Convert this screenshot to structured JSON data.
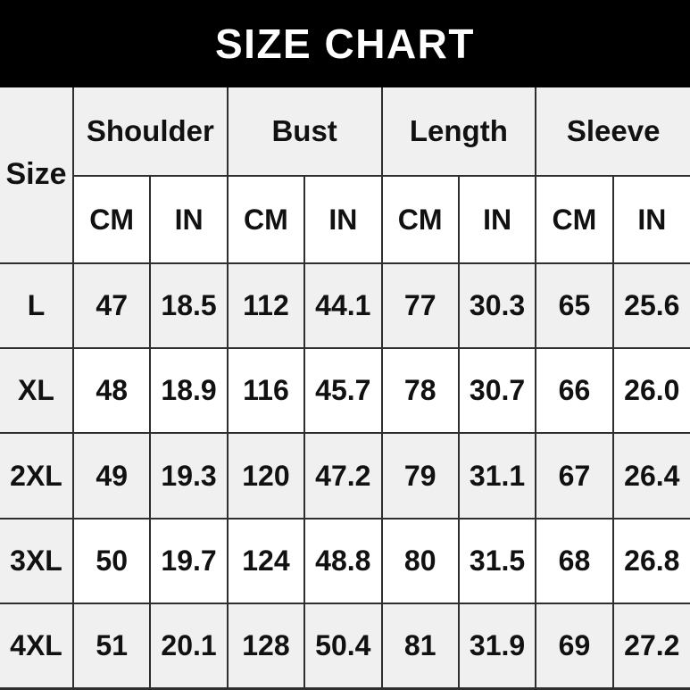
{
  "banner": {
    "title": "SIZE CHART"
  },
  "colors": {
    "banner_bg": "#000000",
    "banner_text": "#ffffff",
    "shaded_cell": "#f0f0f0",
    "plain_cell": "#ffffff",
    "border": "#2e2e2e",
    "text": "#111111"
  },
  "table": {
    "size_header": "Size",
    "groups": [
      {
        "label": "Shoulder"
      },
      {
        "label": "Bust"
      },
      {
        "label": "Length"
      },
      {
        "label": "Sleeve"
      }
    ],
    "units": [
      "CM",
      "IN",
      "CM",
      "IN",
      "CM",
      "IN",
      "CM",
      "IN"
    ],
    "rows": [
      {
        "size": "L",
        "values": [
          "47",
          "18.5",
          "112",
          "44.1",
          "77",
          "30.3",
          "65",
          "25.6"
        ]
      },
      {
        "size": "XL",
        "values": [
          "48",
          "18.9",
          "116",
          "45.7",
          "78",
          "30.7",
          "66",
          "26.0"
        ]
      },
      {
        "size": "2XL",
        "values": [
          "49",
          "19.3",
          "120",
          "47.2",
          "79",
          "31.1",
          "67",
          "26.4"
        ]
      },
      {
        "size": "3XL",
        "values": [
          "50",
          "19.7",
          "124",
          "48.8",
          "80",
          "31.5",
          "68",
          "26.8"
        ]
      },
      {
        "size": "4XL",
        "values": [
          "51",
          "20.1",
          "128",
          "50.4",
          "81",
          "31.9",
          "69",
          "27.2"
        ]
      }
    ]
  },
  "chart_data": {
    "type": "table",
    "title": "SIZE CHART",
    "columns": [
      "Size",
      "Shoulder CM",
      "Shoulder IN",
      "Bust CM",
      "Bust IN",
      "Length CM",
      "Length IN",
      "Sleeve CM",
      "Sleeve IN"
    ],
    "rows": [
      [
        "L",
        47,
        18.5,
        112,
        44.1,
        77,
        30.3,
        65,
        25.6
      ],
      [
        "XL",
        48,
        18.9,
        116,
        45.7,
        78,
        30.7,
        66,
        26.0
      ],
      [
        "2XL",
        49,
        19.3,
        120,
        47.2,
        79,
        31.1,
        67,
        26.4
      ],
      [
        "3XL",
        50,
        19.7,
        124,
        48.8,
        80,
        31.5,
        68,
        26.8
      ],
      [
        "4XL",
        51,
        20.1,
        128,
        50.4,
        81,
        31.9,
        69,
        27.2
      ]
    ]
  }
}
